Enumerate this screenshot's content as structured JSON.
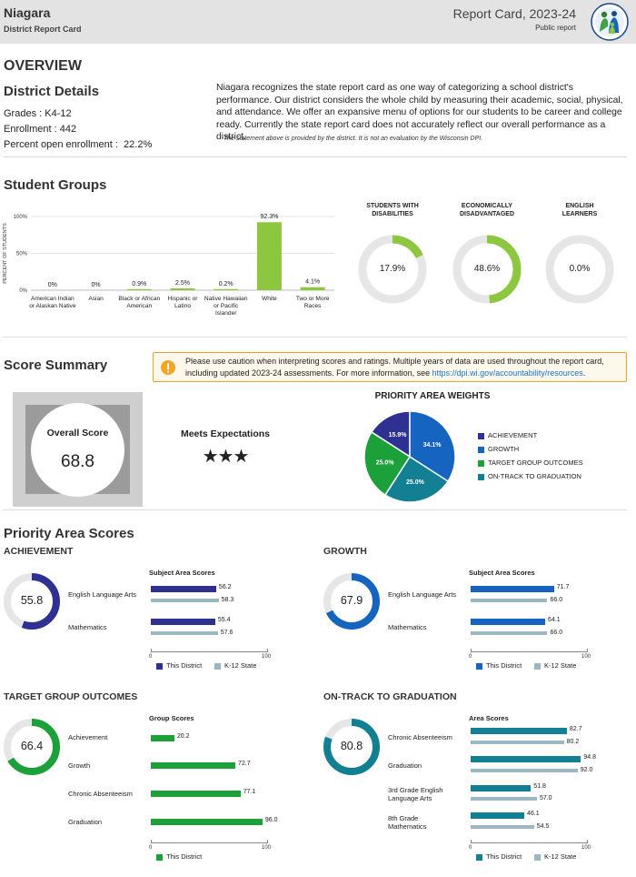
{
  "header": {
    "district_name": "Niagara",
    "subtitle": "District Report Card",
    "report_title": "Report Card, 2023-24",
    "report_type": "Public report",
    "logo_icon": "dpi-logo-icon"
  },
  "overview": {
    "heading": "OVERVIEW",
    "details_heading": "District Details",
    "grades_label": "Grades :",
    "grades_value": "K4-12",
    "enrollment_label": "Enrollment :",
    "enrollment_value": "442",
    "open_label": "Percent open enrollment :",
    "open_value": "22.2%",
    "statement": "Niagara recognizes the state report card as one way of categorizing a school district's performance. Our district considers the whole child by measuring their academic, social, physical, and attendance. We offer an expansive menu of options for our students to be career and college ready. Currently the state report card does not accurately reflect our overall performance as a district.",
    "disclaimer": "The statement above is provided by the district. It is not an evaluation by the Wisconsin DPI."
  },
  "student_groups": {
    "heading": "Student Groups",
    "donuts": [
      {
        "title_line1": "STUDENTS WITH",
        "title_line2": "DISABILITIES",
        "value_label": "17.9%",
        "value": 17.9
      },
      {
        "title_line1": "ECONOMICALLY",
        "title_line2": "DISADVANTAGED",
        "value_label": "48.6%",
        "value": 48.6
      },
      {
        "title_line1": "ENGLISH",
        "title_line2": "LEARNERS",
        "value_label": "0.0%",
        "value": 0.0
      }
    ]
  },
  "score_summary": {
    "heading": "Score Summary",
    "caution_icon": "exclamation-icon",
    "caution_text": "Please use caution when interpreting scores and ratings. Multiple years of data are used throughout the report card, including updated 2023-24 assessments. For more information, see ",
    "caution_link": "https://dpi.wi.gov/accountability/resources",
    "caution_end": ".",
    "overall_label": "Overall Score",
    "overall_value": "68.8",
    "rating": "Meets Expectations",
    "stars": "★★★"
  },
  "priority": {
    "heading": "Priority Area Scores",
    "achievement": {
      "title": "ACHIEVEMENT",
      "score": "55.8",
      "score_value": 55.8,
      "chart_title": "Subject Area Scores",
      "rows": [
        "English Language Arts",
        "Mathematics"
      ]
    },
    "growth": {
      "title": "GROWTH",
      "score": "67.9",
      "score_value": 67.9,
      "chart_title": "Subject Area Scores",
      "rows": [
        "English Language Arts",
        "Mathematics"
      ]
    },
    "target": {
      "title": "TARGET GROUP OUTCOMES",
      "score": "66.4",
      "score_value": 66.4,
      "chart_title": "Group Scores",
      "rows": [
        "Achievement",
        "Growth",
        "Chronic Absenteeism",
        "Graduation"
      ]
    },
    "ontrack": {
      "title": "ON-TRACK TO GRADUATION",
      "score": "80.8",
      "score_value": 80.8,
      "chart_title": "Area Scores",
      "rows": [
        "Chronic Absenteeism",
        "Graduation",
        "3rd Grade English Language Arts",
        "8th Grade Mathematics"
      ]
    },
    "legend_district": "This District",
    "legend_state": "K-12 State",
    "tick_min": "0",
    "tick_max": "100"
  },
  "colors": {
    "green": "#8dc63f",
    "navy": "#2e3192",
    "blue": "#1565c0",
    "dkgreen": "#1ba03a",
    "teal": "#127f92",
    "state": "#9cb7c4",
    "ring_bg": "#e6e6e6"
  },
  "chart_data": [
    {
      "type": "bar",
      "title": "",
      "ylabel": "PERCENT OF STUDENTS",
      "categories": [
        "American Indian or Alaskan Native",
        "Asian",
        "Black or African American",
        "Hispanic or Latino",
        "Native Hawaiian or Pacific Islander",
        "White",
        "Two or More Races"
      ],
      "values": [
        0,
        0,
        0.9,
        2.5,
        0.2,
        92.3,
        4.1
      ],
      "value_labels": [
        "0%",
        "0%",
        "0.9%",
        "2.5%",
        "0.2%",
        "92.3%",
        "4.1%"
      ],
      "yticks": [
        "100%",
        "50%",
        "0%"
      ],
      "ylim": [
        0,
        100
      ]
    },
    {
      "type": "pie",
      "title": "PRIORITY AREA WEIGHTS",
      "labels": [
        "ACHIEVEMENT",
        "GROWTH",
        "TARGET GROUP OUTCOMES",
        "ON-TRACK TO GRADUATION"
      ],
      "values": [
        15.9,
        34.1,
        25.0,
        25.0
      ],
      "value_labels": [
        "15.9%",
        "34.1%",
        "25.0%",
        "25.0%"
      ],
      "colors": [
        "#2e3192",
        "#1565c0",
        "#1ba03a",
        "#127f92"
      ]
    },
    {
      "type": "bar",
      "title": "Subject Area Scores",
      "categories": [
        "English Language Arts",
        "Mathematics"
      ],
      "series": [
        {
          "name": "This District",
          "values": [
            56.2,
            55.4
          ]
        },
        {
          "name": "K-12 State",
          "values": [
            58.3,
            57.6
          ]
        }
      ],
      "xlim": [
        0,
        100
      ]
    },
    {
      "type": "bar",
      "title": "Subject Area Scores",
      "categories": [
        "English Language Arts",
        "Mathematics"
      ],
      "series": [
        {
          "name": "This District",
          "values": [
            71.7,
            64.1
          ]
        },
        {
          "name": "K-12 State",
          "values": [
            66.0,
            66.0
          ]
        }
      ],
      "xlim": [
        0,
        100
      ]
    },
    {
      "type": "bar",
      "title": "Group Scores",
      "categories": [
        "Achievement",
        "Growth",
        "Chronic Absenteeism",
        "Graduation"
      ],
      "series": [
        {
          "name": "This District",
          "values": [
            20.2,
            72.7,
            77.1,
            96.0
          ]
        }
      ],
      "xlim": [
        0,
        100
      ]
    },
    {
      "type": "bar",
      "title": "Area Scores",
      "categories": [
        "Chronic Absenteeism",
        "Graduation",
        "3rd Grade English Language Arts",
        "8th Grade Mathematics"
      ],
      "series": [
        {
          "name": "This District",
          "values": [
            82.7,
            94.8,
            51.8,
            46.1
          ]
        },
        {
          "name": "K-12 State",
          "values": [
            80.2,
            92.0,
            57.0,
            54.5
          ]
        }
      ],
      "xlim": [
        0,
        100
      ]
    }
  ]
}
